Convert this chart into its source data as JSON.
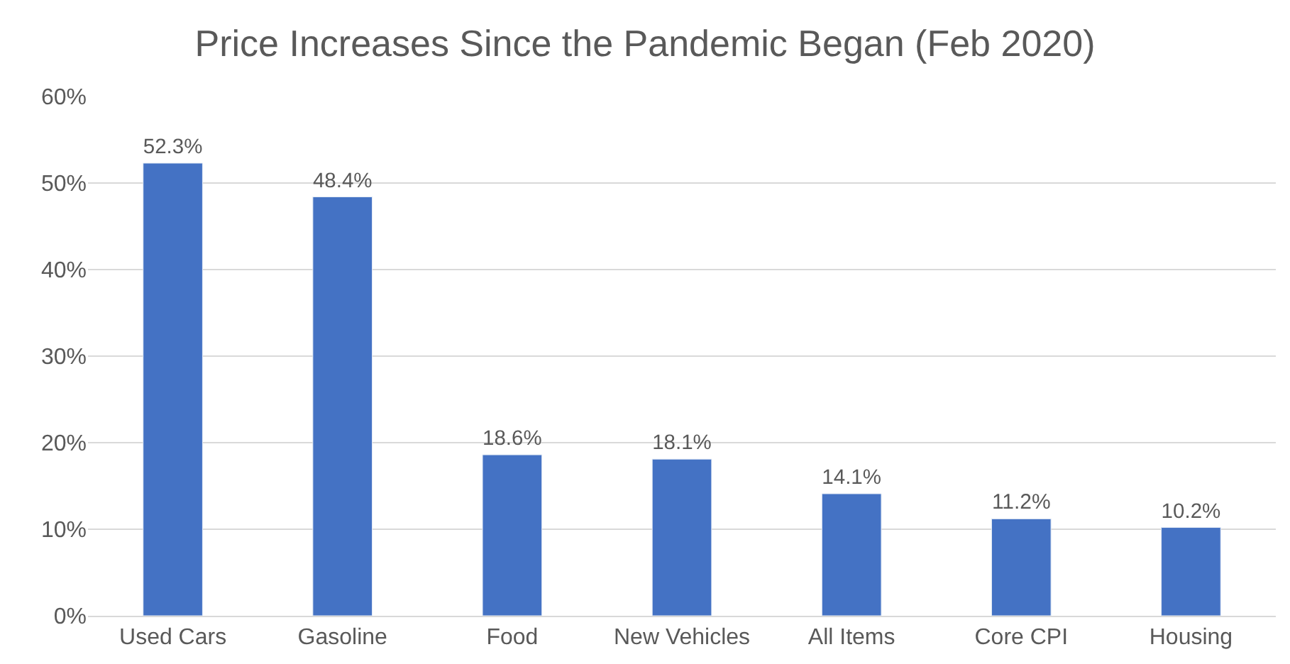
{
  "chart_data": {
    "type": "bar",
    "title": "Price Increases Since the Pandemic Began (Feb 2020)",
    "categories": [
      "Used Cars",
      "Gasoline",
      "Food",
      "New Vehicles",
      "All Items",
      "Core CPI",
      "Housing"
    ],
    "values": [
      52.3,
      48.4,
      18.6,
      18.1,
      14.1,
      11.2,
      10.2
    ],
    "value_labels": [
      "52.3%",
      "48.4%",
      "18.6%",
      "18.1%",
      "14.1%",
      "11.2%",
      "10.2%"
    ],
    "color": "#4472c4",
    "ylim": [
      0,
      60
    ],
    "yticks": [
      {
        "value": 0,
        "label": "0%"
      },
      {
        "value": 10,
        "label": "10%"
      },
      {
        "value": 20,
        "label": "20%"
      },
      {
        "value": 30,
        "label": "30%"
      },
      {
        "value": 40,
        "label": "40%"
      },
      {
        "value": 50,
        "label": "50%"
      },
      {
        "value": 60,
        "label": "60%"
      }
    ],
    "grid": "y",
    "legend": false
  }
}
